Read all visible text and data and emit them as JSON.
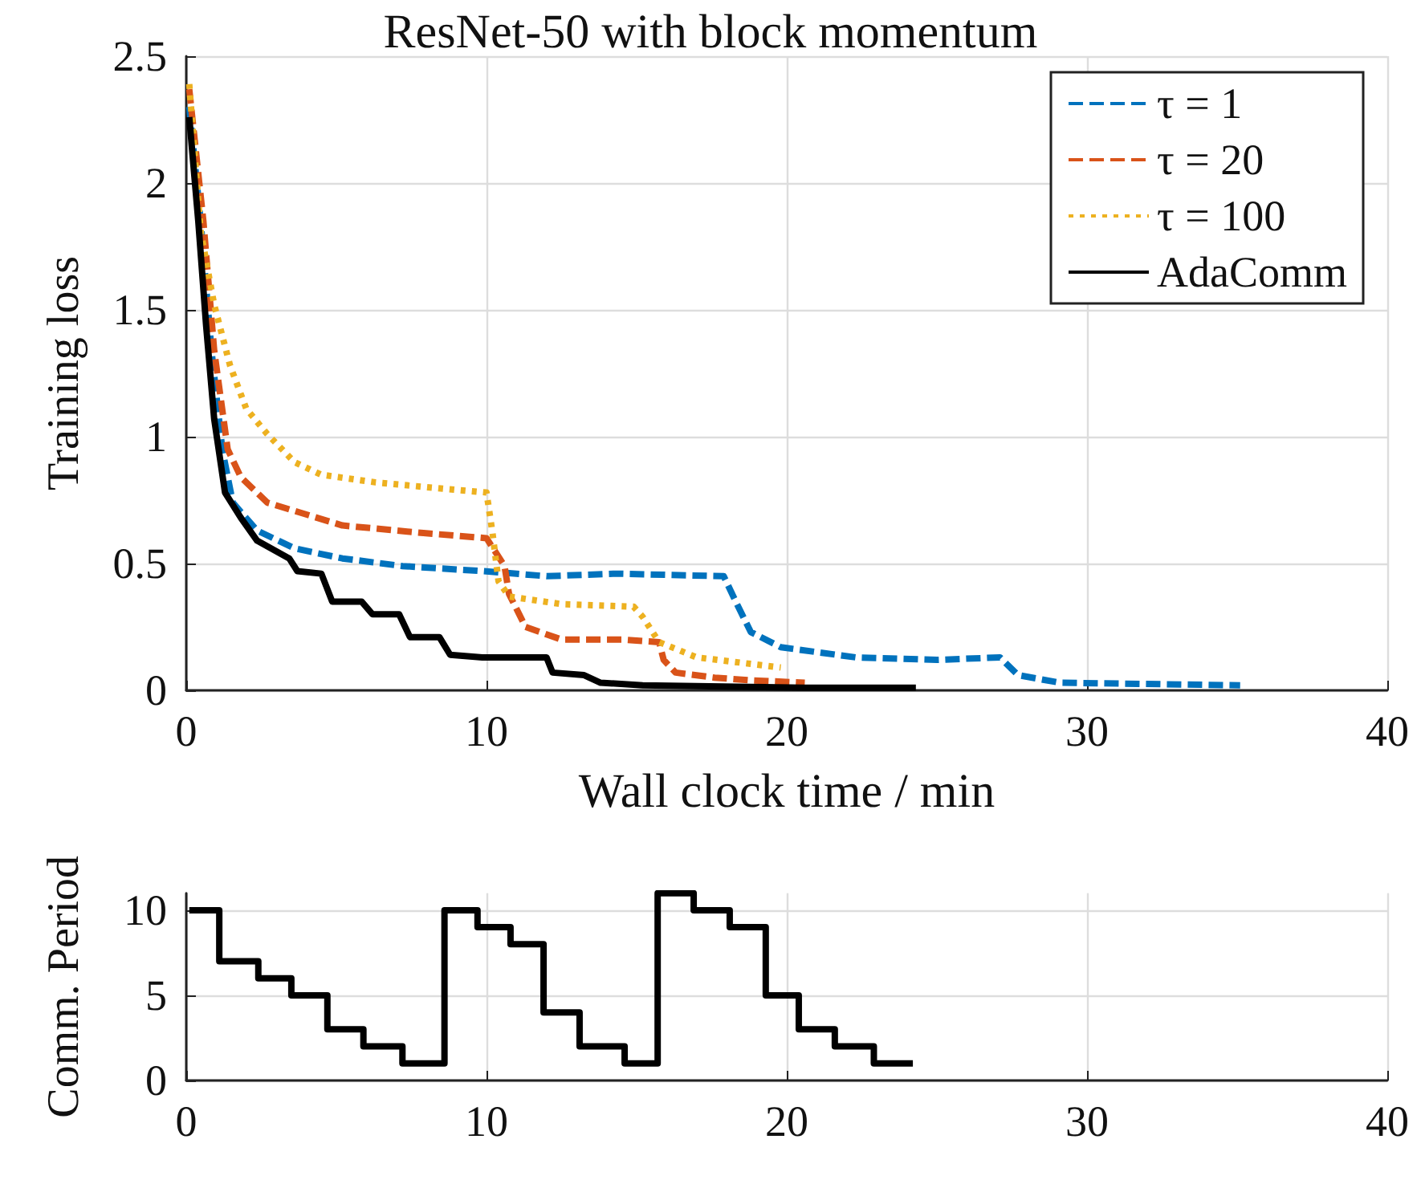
{
  "chart_data": [
    {
      "type": "line",
      "title": "ResNet-50 with block momentum",
      "xlabel": "Wall clock time / min",
      "ylabel": "Training loss",
      "xlim": [
        0,
        40
      ],
      "xticks": [
        0,
        10,
        20,
        30,
        40
      ],
      "ylim": [
        0,
        2.5
      ],
      "yticks": [
        0,
        0.5,
        1,
        1.5,
        2,
        2.5
      ],
      "grid": true,
      "legend": "top right",
      "series": [
        {
          "name": "τ = 1",
          "color": "#0072bd",
          "line_style": "dashed",
          "x": [
            0.1,
            0.48,
            0.84,
            1.2,
            1.55,
            2.36,
            3.6,
            5.2,
            7.2,
            9.9,
            12,
            14.3,
            17.9,
            18.3,
            18.8,
            19.8,
            22.3,
            25,
            27.1,
            27.7,
            29.1,
            35.1
          ],
          "values": [
            2.3,
            1.85,
            1.34,
            0.95,
            0.74,
            0.63,
            0.56,
            0.52,
            0.49,
            0.47,
            0.45,
            0.46,
            0.45,
            0.35,
            0.23,
            0.17,
            0.13,
            0.12,
            0.13,
            0.06,
            0.03,
            0.02
          ]
        },
        {
          "name": "τ = 20",
          "color": "#d95319",
          "line_style": "dashed",
          "x": [
            0.1,
            0.57,
            0.93,
            1.38,
            1.82,
            2.7,
            5.2,
            7.9,
            10,
            10.6,
            10.75,
            11.3,
            12.5,
            14.5,
            15.75,
            15.9,
            16.3,
            17.6,
            18.75,
            20.6
          ],
          "values": [
            2.37,
            1.85,
            1.34,
            0.95,
            0.84,
            0.74,
            0.65,
            0.62,
            0.6,
            0.49,
            0.38,
            0.25,
            0.2,
            0.2,
            0.19,
            0.12,
            0.07,
            0.05,
            0.04,
            0.03
          ]
        },
        {
          "name": "τ = 100",
          "color": "#edb120",
          "line_style": "dotted",
          "x": [
            0.1,
            0.48,
            0.93,
            1.46,
            2,
            2.7,
            3.6,
            4.5,
            6.3,
            8.1,
            10,
            10.2,
            10.4,
            10.75,
            12.5,
            14.9,
            15.2,
            15.75,
            17,
            19.8
          ],
          "values": [
            2.39,
            1.81,
            1.52,
            1.28,
            1.11,
            1.01,
            0.9,
            0.85,
            0.82,
            0.8,
            0.78,
            0.62,
            0.43,
            0.37,
            0.34,
            0.33,
            0.29,
            0.19,
            0.13,
            0.09
          ]
        },
        {
          "name": "AdaComm",
          "color": "#000000",
          "line_style": "solid",
          "x": [
            0.1,
            0.4,
            0.66,
            0.93,
            1.29,
            1.82,
            2.36,
            3.43,
            3.7,
            4.5,
            4.86,
            5.84,
            6.2,
            7.09,
            7.45,
            8.43,
            8.79,
            9.86,
            12,
            12.2,
            13.25,
            13.8,
            15.2,
            20.6,
            24.3
          ],
          "values": [
            2.26,
            1.85,
            1.44,
            1.07,
            0.78,
            0.68,
            0.59,
            0.52,
            0.47,
            0.46,
            0.35,
            0.35,
            0.3,
            0.3,
            0.21,
            0.21,
            0.14,
            0.13,
            0.13,
            0.07,
            0.06,
            0.03,
            0.02,
            0.01,
            0.01
          ]
        }
      ]
    },
    {
      "type": "step",
      "ylabel": "Comm. Period",
      "xlim": [
        0,
        40
      ],
      "xticks": [
        0,
        10,
        20,
        30,
        40
      ],
      "ylim": [
        0,
        11
      ],
      "yticks": [
        0,
        5,
        10
      ],
      "grid": true,
      "series": [
        {
          "color": "#000000",
          "line_style": "solid",
          "x": [
            0.1,
            1.1,
            2.4,
            3.5,
            4.7,
            5.9,
            7.2,
            8.6,
            9.7,
            10.8,
            11.9,
            13.1,
            14.6,
            15.7,
            16.9,
            18.1,
            19.3,
            20.4,
            21.6,
            22.9,
            24.2
          ],
          "values": [
            10,
            7,
            6,
            5,
            3,
            2,
            1,
            10,
            9,
            8,
            4,
            2,
            1,
            11,
            10,
            9,
            5,
            3,
            2,
            1,
            1
          ]
        }
      ]
    }
  ]
}
